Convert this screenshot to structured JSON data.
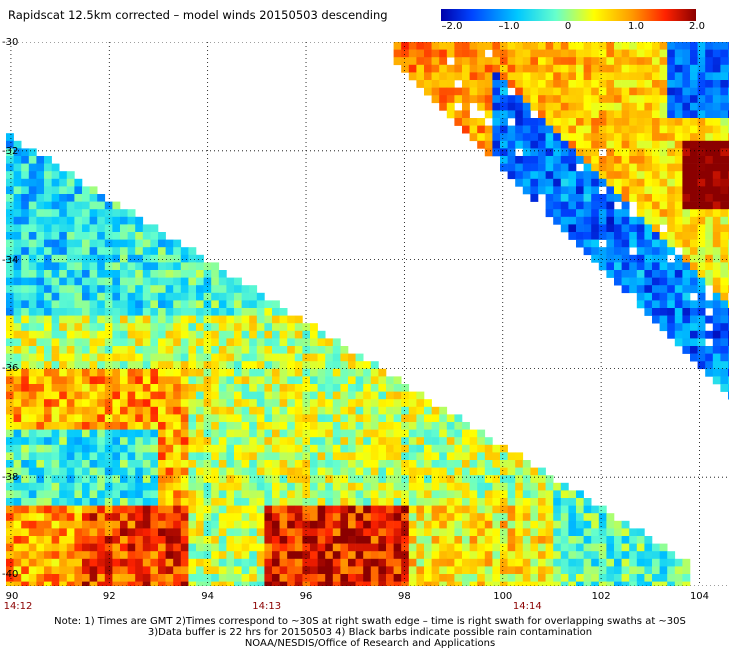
{
  "title": "Rapidscat 12.5km corrected – model winds 20150503 descending",
  "colorbar": {
    "ticks": [
      "–2.0",
      "–1.0",
      "0",
      "1.0",
      "2.0"
    ],
    "tick_values": [
      -2.0,
      -1.0,
      0,
      1.0,
      2.0
    ],
    "colors": [
      "#0000aa",
      "#0044ff",
      "#00c8ff",
      "#66ffcc",
      "#ffff00",
      "#ff9900",
      "#ff2200",
      "#8b0000"
    ]
  },
  "axes": {
    "lat_labels": [
      "-30",
      "-32",
      "-34",
      "-36",
      "-38",
      "-40"
    ],
    "lat_values": [
      -30,
      -32,
      -34,
      -36,
      -38,
      -40
    ],
    "lon_labels": [
      "90",
      "92",
      "94",
      "96",
      "98",
      "100",
      "102",
      "104"
    ],
    "lon_values": [
      90,
      92,
      94,
      96,
      98,
      100,
      102,
      104
    ],
    "lon_range": [
      89.9,
      104.6
    ],
    "lat_range": [
      -40,
      -30
    ]
  },
  "time_labels": [
    {
      "text": "14:12",
      "lon": 90
    },
    {
      "text": "14:13",
      "lon": 95.2
    },
    {
      "text": "14:14",
      "lon": 100.5
    }
  ],
  "notes": [
    "Note: 1) Times are GMT 2)Times correspond to ~30S at right swath edge – time is right swath for overlapping swaths at ~30S",
    "3)Data buffer is 22 hrs for 20150503 4) Black barbs indicate possible rain contamination",
    "NOAA/NESDIS/Office of Research and Applications"
  ]
}
